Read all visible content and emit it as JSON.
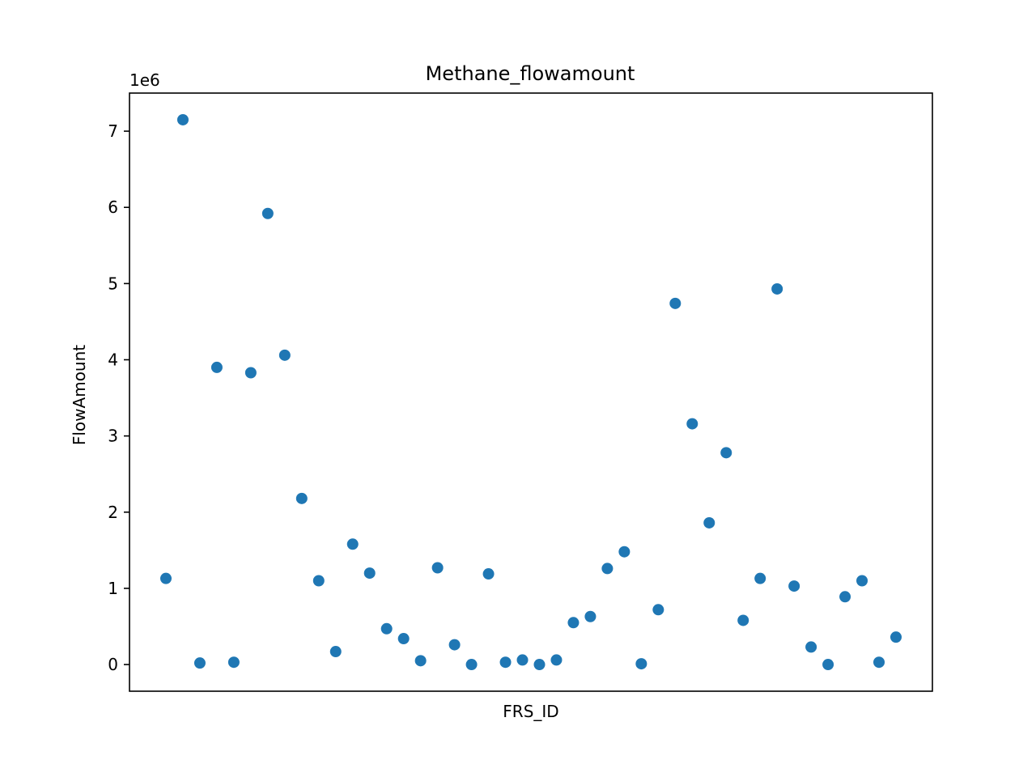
{
  "chart_data": {
    "type": "scatter",
    "title": "Methane_flowamount",
    "xlabel": "FRS_ID",
    "ylabel": "FlowAmount",
    "y_offset_label": "1e6",
    "y_scale_factor": 1000000,
    "ylim": [
      -350000,
      7500000
    ],
    "yticks": [
      0,
      1,
      2,
      3,
      4,
      5,
      6,
      7
    ],
    "x_ticks_visible": false,
    "grid": false,
    "marker_color": "#1f77b4",
    "values": [
      1130000,
      7150000,
      20000,
      3900000,
      30000,
      3830000,
      5920000,
      4060000,
      2180000,
      1100000,
      170000,
      1580000,
      1200000,
      470000,
      340000,
      50000,
      1270000,
      260000,
      0,
      1190000,
      30000,
      60000,
      0,
      60000,
      550000,
      630000,
      1260000,
      1480000,
      10000,
      720000,
      4740000,
      3160000,
      1860000,
      2780000,
      580000,
      1130000,
      4930000,
      1030000,
      230000,
      0,
      890000,
      1100000,
      30000,
      360000
    ]
  }
}
